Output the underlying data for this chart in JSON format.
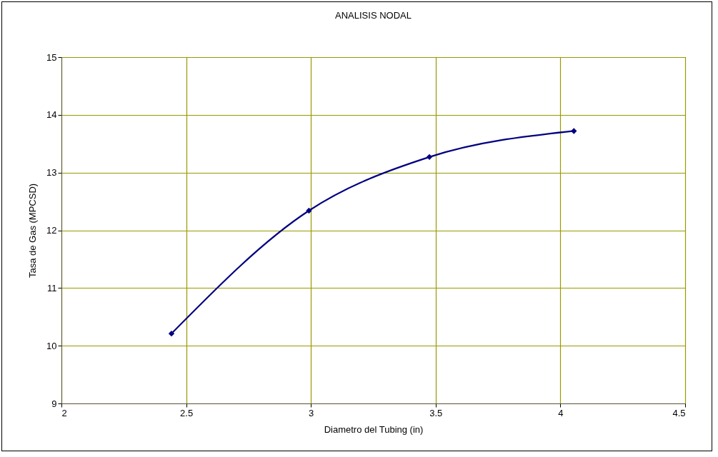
{
  "chart_data": {
    "type": "line",
    "title": "ANALISIS NODAL",
    "xlabel": "Diametro del Tubing (in)",
    "ylabel": "Tasa de Gas (MPCSD)",
    "x": [
      2.441,
      2.992,
      3.475,
      4.054
    ],
    "series": [
      {
        "color": "#000080",
        "values": [
          10.21,
          12.34,
          13.27,
          13.72
        ]
      }
    ],
    "xlim": [
      2,
      4.5
    ],
    "xticks": [
      2,
      2.5,
      3,
      3.5,
      4,
      4.5
    ],
    "ylim": [
      9,
      15
    ],
    "yticks": [
      9,
      10,
      11,
      12,
      13,
      14,
      15
    ],
    "grid": true,
    "marker": "diamond",
    "line_style": "solid"
  }
}
